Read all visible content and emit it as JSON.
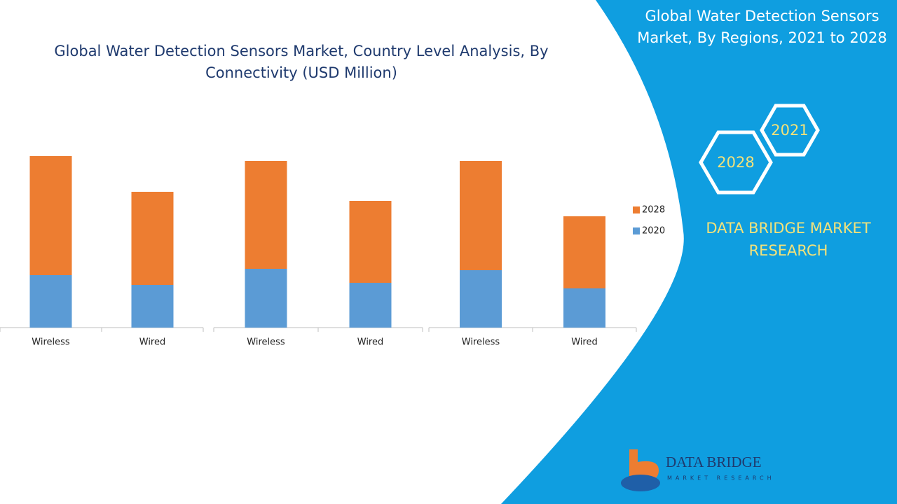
{
  "chart_data": {
    "type": "bar",
    "stacked": true,
    "title": "Global Water Detection Sensors Market, Country Level Analysis, By Connectivity (USD Million)",
    "categories": [
      "Wireless",
      "Wired",
      "Wireless",
      "Wired",
      "Wireless",
      "Wired"
    ],
    "series": [
      {
        "name": "2020",
        "color": "#5b9bd5",
        "values": [
          75,
          61,
          84,
          64,
          82,
          56
        ]
      },
      {
        "name": "2028",
        "color": "#ed7d31",
        "values": [
          170,
          133,
          154,
          117,
          156,
          103
        ]
      }
    ]
  },
  "sidebar": {
    "title": "Global Water Detection Sensors Market, By Regions, 2021 to 2028",
    "hexagons": [
      "2021",
      "2028"
    ],
    "brand": "DATA BRIDGE MARKET RESEARCH",
    "logo_name": "DATA BRIDGE",
    "logo_tagline": "MARKET RESEARCH"
  }
}
